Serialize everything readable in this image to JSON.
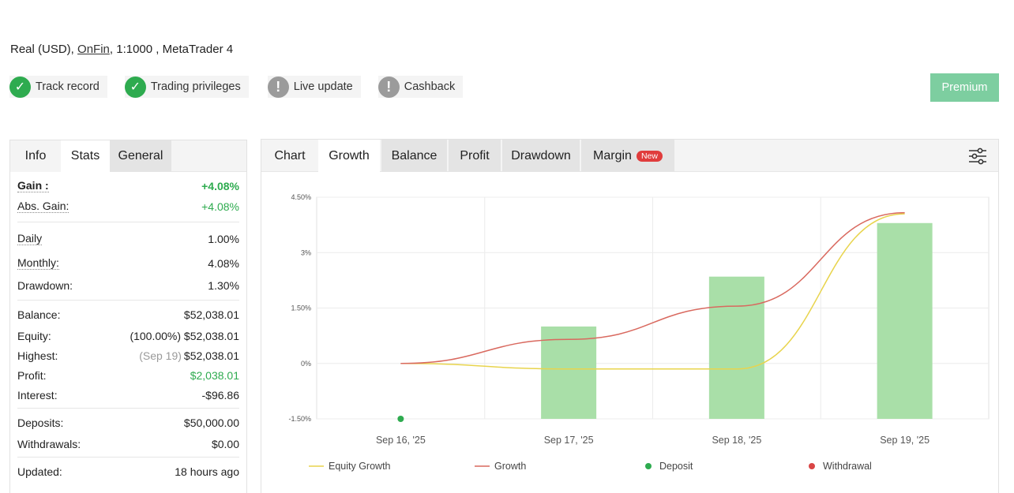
{
  "account": {
    "type": "Real (USD),",
    "broker": "OnFin",
    "rest": ", 1:1000 , MetaTrader 4"
  },
  "badges": [
    {
      "label": "Track record",
      "icon": "check-circle-icon",
      "status": "ok"
    },
    {
      "label": "Trading privileges",
      "icon": "check-circle-icon",
      "status": "ok"
    },
    {
      "label": "Live update",
      "icon": "exclamation-circle-icon",
      "status": "warn"
    },
    {
      "label": "Cashback",
      "icon": "exclamation-circle-icon",
      "status": "warn"
    }
  ],
  "premium_label": "Premium",
  "left_tabs": {
    "info": "Info",
    "stats": "Stats",
    "general": "General"
  },
  "stats": {
    "gain": {
      "label": "Gain :",
      "value": "+4.08%"
    },
    "abs_gain": {
      "label": "Abs. Gain:",
      "value": "+4.08%"
    },
    "daily": {
      "label": "Daily",
      "value": "1.00%"
    },
    "monthly": {
      "label": "Monthly:",
      "value": "4.08%"
    },
    "drawdown": {
      "label": "Drawdown:",
      "value": "1.30%"
    },
    "balance": {
      "label": "Balance:",
      "value": "$52,038.01"
    },
    "equity": {
      "label": "Equity:",
      "note": "(100.00%)",
      "value": "$52,038.01"
    },
    "highest": {
      "label": "Highest:",
      "note": "(Sep 19)",
      "value": "$52,038.01"
    },
    "profit": {
      "label": "Profit:",
      "value": "$2,038.01"
    },
    "interest": {
      "label": "Interest:",
      "value": "-$96.86"
    },
    "deposits": {
      "label": "Deposits:",
      "value": "$50,000.00"
    },
    "withdrawals": {
      "label": "Withdrawals:",
      "value": "$0.00"
    },
    "updated": {
      "label": "Updated:",
      "value": "18 hours ago"
    }
  },
  "right_tabs": {
    "chart": "Chart",
    "growth": "Growth",
    "balance": "Balance",
    "profit": "Profit",
    "drawdown": "Drawdown",
    "margin": "Margin",
    "new_badge": "New"
  },
  "colors": {
    "green": "#2eab4f",
    "bar": "#a9dfa8",
    "equity_line": "#e8d44d",
    "growth_line": "#d9695f",
    "withdrawal": "#d94545"
  },
  "chart_data": {
    "type": "bar",
    "categories": [
      "Sep 16, '25",
      "Sep 17, '25",
      "Sep 18, '25",
      "Sep 19, '25"
    ],
    "ylim": [
      -1.5,
      4.5
    ],
    "y_ticks": [
      4.5,
      3,
      1.5,
      0,
      -1.5
    ],
    "y_tick_labels": [
      "4.50%",
      "3%",
      "1.50%",
      "0%",
      "-1.50%"
    ],
    "bars": [
      null,
      1.0,
      2.35,
      3.8
    ],
    "series": [
      {
        "name": "Equity Growth",
        "values": [
          0,
          -0.15,
          -0.15,
          4.05
        ]
      },
      {
        "name": "Growth",
        "values": [
          0,
          0.65,
          1.55,
          4.08
        ]
      }
    ],
    "deposit_point": {
      "category": "Sep 16, '25",
      "value": -1.5
    },
    "legend": {
      "position": "bottom",
      "items": [
        {
          "label": "Equity Growth",
          "kind": "line"
        },
        {
          "label": "Growth",
          "kind": "line"
        },
        {
          "label": "Deposit",
          "kind": "dot"
        },
        {
          "label": "Withdrawal",
          "kind": "dot"
        }
      ]
    },
    "grid": true
  }
}
